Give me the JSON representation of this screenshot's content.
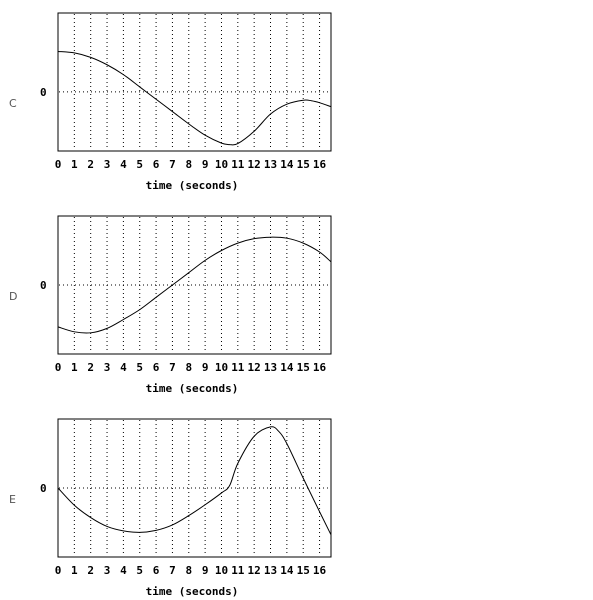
{
  "chart_data": [
    {
      "type": "line",
      "panel_label": "C",
      "y_tick_label": "0",
      "xlabel": "time (seconds)",
      "x_ticks": [
        "0",
        "1",
        "2",
        "3",
        "4",
        "5",
        "6",
        "7",
        "8",
        "9",
        "10",
        "11",
        "12",
        "13",
        "14",
        "15",
        "16"
      ],
      "xlim": [
        0,
        16.7
      ],
      "ylim": [
        -1.2,
        1.6
      ],
      "grid": "vertical dotted lines at each second; dotted zero line",
      "x": [
        0,
        1,
        2,
        3,
        4,
        5,
        6,
        7,
        8,
        9,
        10,
        10.5,
        11,
        12,
        13,
        14,
        15,
        15.5,
        16,
        16.7
      ],
      "y": [
        0.82,
        0.79,
        0.7,
        0.55,
        0.35,
        0.1,
        -0.15,
        -0.4,
        -0.65,
        -0.88,
        -1.04,
        -1.07,
        -1.05,
        -0.8,
        -0.45,
        -0.25,
        -0.17,
        -0.18,
        -0.22,
        -0.3
      ]
    },
    {
      "type": "line",
      "panel_label": "D",
      "y_tick_label": "0",
      "xlabel": "time (seconds)",
      "x_ticks": [
        "0",
        "1",
        "2",
        "3",
        "4",
        "5",
        "6",
        "7",
        "8",
        "9",
        "10",
        "11",
        "12",
        "13",
        "14",
        "15",
        "16"
      ],
      "xlim": [
        0,
        16.7
      ],
      "ylim": [
        -1.4,
        1.4
      ],
      "grid": "vertical dotted lines at each second; dotted zero line",
      "x": [
        0,
        1,
        2,
        3,
        4,
        5,
        6,
        7,
        8,
        9,
        10,
        11,
        12,
        13,
        14,
        15,
        16,
        16.7
      ],
      "y": [
        -0.85,
        -0.95,
        -0.97,
        -0.88,
        -0.7,
        -0.5,
        -0.25,
        0,
        0.25,
        0.5,
        0.7,
        0.85,
        0.94,
        0.97,
        0.95,
        0.85,
        0.67,
        0.47
      ]
    },
    {
      "type": "line",
      "panel_label": "E",
      "y_tick_label": "0",
      "xlabel": "time (seconds)",
      "x_ticks": [
        "0",
        "1",
        "2",
        "3",
        "4",
        "5",
        "6",
        "7",
        "8",
        "9",
        "10",
        "11",
        "12",
        "13",
        "14",
        "15",
        "16"
      ],
      "xlim": [
        0,
        16.7
      ],
      "ylim": [
        -1.4,
        1.4
      ],
      "grid": "vertical dotted lines at each second; dotted zero line",
      "x": [
        0,
        1,
        2,
        3,
        4,
        5,
        6,
        7,
        8,
        9,
        10,
        10.5,
        11,
        12,
        13,
        13.5,
        14,
        15,
        16,
        16.7
      ],
      "y": [
        0,
        -0.35,
        -0.6,
        -0.78,
        -0.87,
        -0.9,
        -0.86,
        -0.75,
        -0.56,
        -0.34,
        -0.1,
        0.05,
        0.5,
        1.05,
        1.24,
        1.15,
        0.9,
        0.2,
        -0.48,
        -0.95
      ]
    }
  ]
}
